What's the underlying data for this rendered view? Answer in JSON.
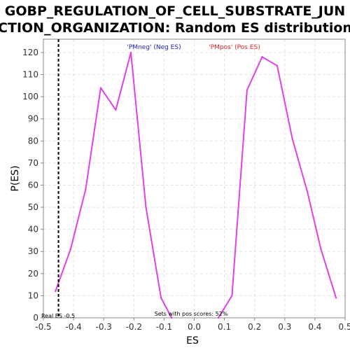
{
  "chart_data": {
    "type": "line",
    "title_line1": "GOBP_REGULATION_OF_CELL_SUBSTRATE_JUN",
    "title_line2": "CTION_ORGANIZATION: Random ES distribution",
    "xlabel": "ES",
    "ylabel": "P(ES)",
    "xlim": [
      -0.5,
      0.5
    ],
    "ylim": [
      0,
      126
    ],
    "x_ticks": [
      -0.5,
      -0.4,
      -0.3,
      -0.2,
      -0.1,
      0.0,
      0.1,
      0.2,
      0.3,
      0.4,
      0.5
    ],
    "x_tick_labels": [
      "-0.5",
      "-0.4",
      "-0.3",
      "-0.2",
      "-0.1",
      "0.0",
      "0.1",
      "0.2",
      "0.3",
      "0.4",
      "0.5"
    ],
    "y_ticks": [
      0,
      10,
      20,
      30,
      40,
      50,
      60,
      70,
      80,
      90,
      100,
      110,
      120
    ],
    "y_tick_labels": [
      "0",
      "10",
      "20",
      "30",
      "40",
      "50",
      "60",
      "70",
      "80",
      "90",
      "100",
      "110",
      "120"
    ],
    "grid": true,
    "legend": [
      {
        "label": "'PMneg' (Neg ES)",
        "color": "#2222cc"
      },
      {
        "label": "'PMpos' (Pos ES)",
        "color": "#dd2222"
      }
    ],
    "series": [
      {
        "color": "#e040e8",
        "points": [
          [
            -0.46,
            12
          ],
          [
            -0.41,
            31
          ],
          [
            -0.36,
            58
          ],
          [
            -0.31,
            104
          ],
          [
            -0.26,
            94
          ],
          [
            -0.21,
            120
          ],
          [
            -0.16,
            50
          ],
          [
            -0.11,
            9
          ],
          [
            -0.075,
            0
          ]
        ]
      },
      {
        "color": "#e040e8",
        "points": [
          [
            0.08,
            0
          ],
          [
            0.125,
            10
          ],
          [
            0.175,
            103
          ],
          [
            0.225,
            118
          ],
          [
            0.275,
            114
          ],
          [
            0.325,
            81
          ],
          [
            0.375,
            57
          ],
          [
            0.42,
            31
          ],
          [
            0.47,
            9
          ]
        ]
      }
    ],
    "real_es": {
      "value": -0.45,
      "label": "Real ES -0.5",
      "color": "#000000"
    },
    "annotation": "Sets with pos scores: 52%"
  }
}
